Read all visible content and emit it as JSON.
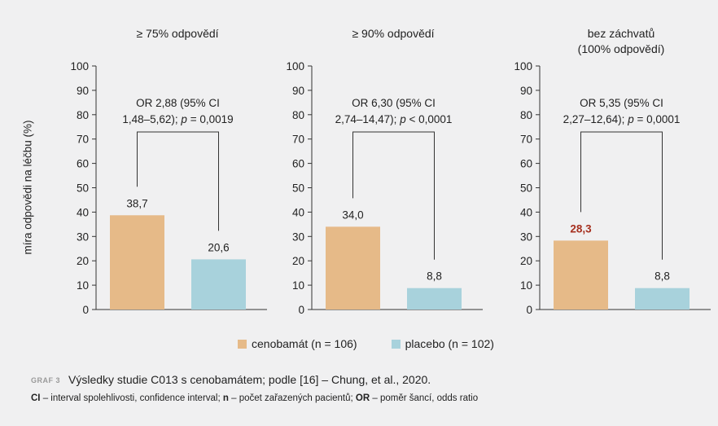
{
  "chart_data": {
    "type": "bar",
    "ylabel": "míra odpovědi na léčbu (%)",
    "ylim": [
      0,
      100
    ],
    "yticks": [
      0,
      10,
      20,
      30,
      40,
      50,
      60,
      70,
      80,
      90,
      100
    ],
    "series": [
      {
        "name": "cenobamát (n = 106)",
        "color": "#e6ba88"
      },
      {
        "name": "placebo (n = 102)",
        "color": "#a8d2dc"
      }
    ],
    "panels": [
      {
        "title": [
          "≥ 75% odpovědí"
        ],
        "values": [
          38.7,
          20.6
        ],
        "labels": [
          "38,7",
          "20,6"
        ],
        "or_text": [
          "OR 2,88 (95% CI",
          "1,48–5,62); ",
          "p",
          " = 0,0019"
        ],
        "highlight_first": false
      },
      {
        "title": [
          "≥ 90% odpovědí"
        ],
        "values": [
          34.0,
          8.8
        ],
        "labels": [
          "34,0",
          "8,8"
        ],
        "or_text": [
          "OR 6,30 (95% CI",
          "2,74–14,47); ",
          "p",
          " < 0,0001"
        ],
        "highlight_first": false
      },
      {
        "title": [
          "bez záchvatů",
          "(100% odpovědí)"
        ],
        "values": [
          28.3,
          8.8
        ],
        "labels": [
          "28,3",
          "8,8"
        ],
        "or_text": [
          "OR 5,35 (95% CI",
          "2,27–12,64); ",
          "p",
          " = 0,0001"
        ],
        "highlight_first": true
      }
    ],
    "highlight_color": "#a6301f"
  },
  "caption": {
    "tag": "GRAF 3",
    "title": "Výsledky studie C013 s cenobamátem; podle [16] – Chung, et al., 2020.",
    "notes": [
      {
        "abbr": "CI",
        "text": " – interval spolehlivosti, confidence interval; "
      },
      {
        "abbr": "n",
        "text": " – počet zařazených pacientů; "
      },
      {
        "abbr": "OR",
        "text": " – poměr šancí, odds ratio"
      }
    ]
  }
}
